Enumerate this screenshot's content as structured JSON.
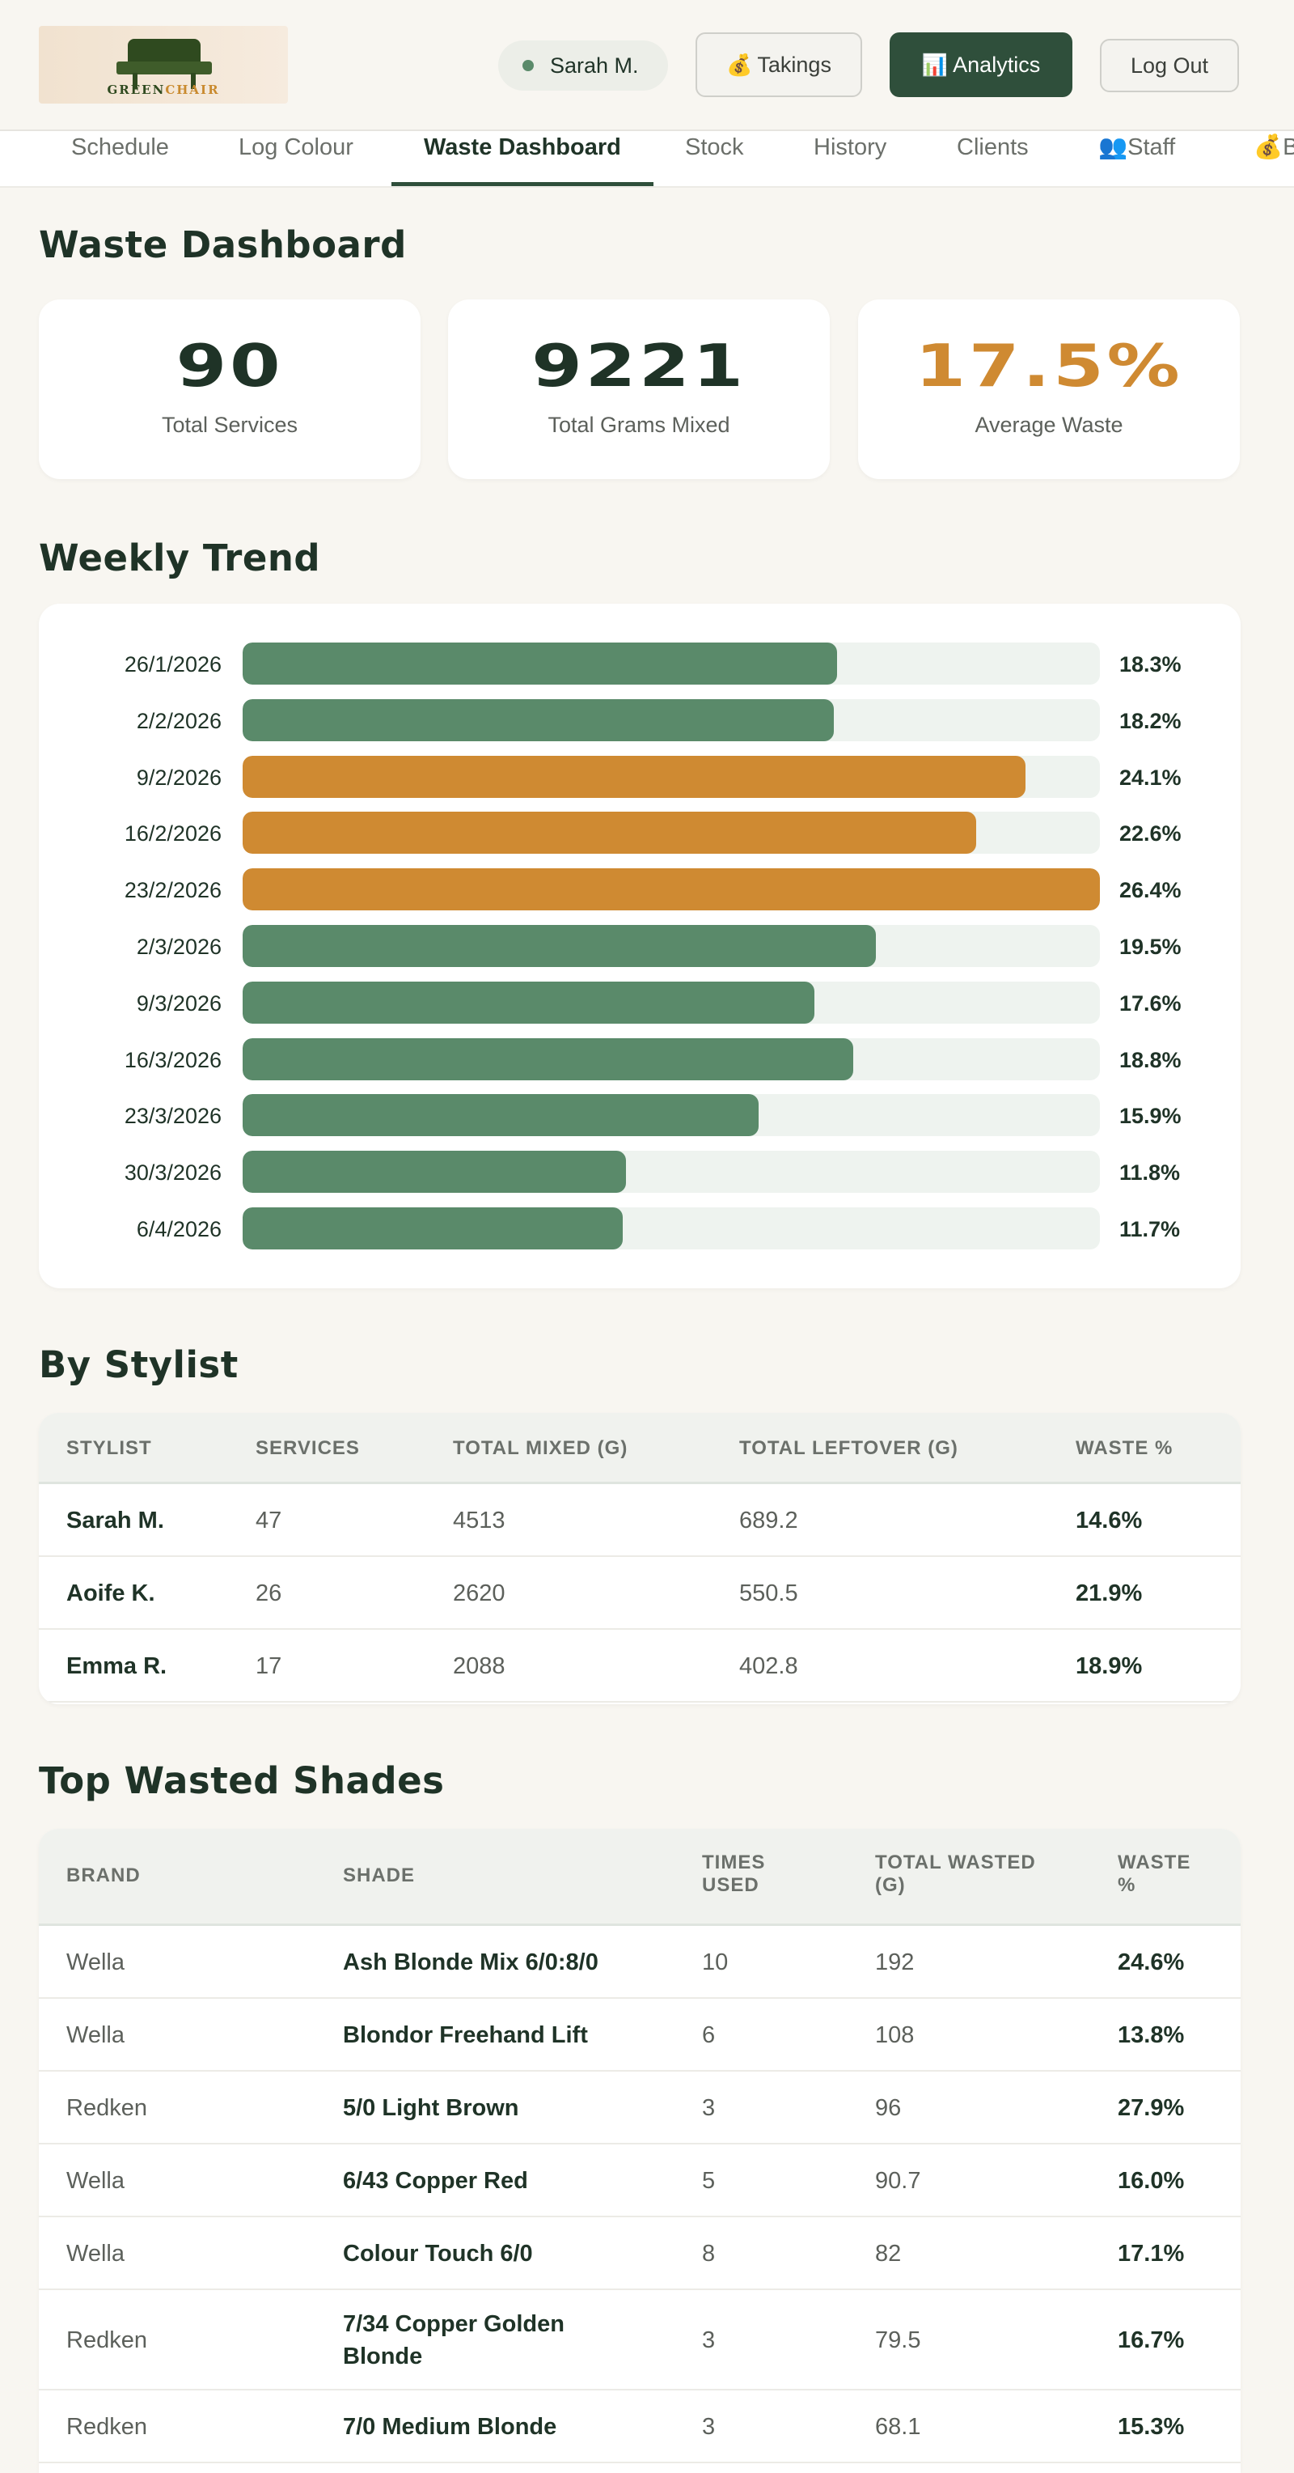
{
  "header": {
    "logo_text_main": "GREEN",
    "logo_text_accent": "CHAIR",
    "user_name": "Sarah M.",
    "takings_icon": "money-bag-icon",
    "takings_label": "Takings",
    "analytics_icon": "bar-chart-icon",
    "analytics_label": "Analytics",
    "logout_label": "Log Out"
  },
  "tabs": [
    {
      "label": "Schedule"
    },
    {
      "label": "Log Colour"
    },
    {
      "label": "Waste Dashboard",
      "active": true
    },
    {
      "label": "Stock"
    },
    {
      "label": "History"
    },
    {
      "label": "Clients"
    },
    {
      "label": "Staff",
      "icon": "people-icon"
    },
    {
      "label": "B",
      "icon": "money-bag-icon"
    }
  ],
  "page_title": "Waste Dashboard",
  "stats": [
    {
      "value": "90",
      "label": "Total Services"
    },
    {
      "value": "9221",
      "label": "Total Grams Mixed"
    },
    {
      "value": "17.5%",
      "label": "Average Waste"
    }
  ],
  "weekly_trend": {
    "title": "Weekly Trend",
    "colors": {
      "normal": "#5a8a6a",
      "high": "#cf8a32"
    },
    "scale_max": 26.4
  },
  "chart_data": {
    "type": "bar",
    "orientation": "horizontal",
    "categories": [
      "26/1/2026",
      "2/2/2026",
      "9/2/2026",
      "16/2/2026",
      "23/2/2026",
      "2/3/2026",
      "9/3/2026",
      "16/3/2026",
      "23/3/2026",
      "30/3/2026",
      "6/4/2026"
    ],
    "values": [
      18.3,
      18.2,
      24.1,
      22.6,
      26.4,
      19.5,
      17.6,
      18.8,
      15.9,
      11.8,
      11.7
    ],
    "value_labels": [
      "18.3%",
      "18.2%",
      "24.1%",
      "22.6%",
      "26.4%",
      "19.5%",
      "17.6%",
      "18.8%",
      "15.9%",
      "11.8%",
      "11.7%"
    ],
    "highlight": [
      false,
      false,
      true,
      true,
      true,
      false,
      false,
      false,
      false,
      false,
      false
    ],
    "xlim": [
      0,
      26.4
    ]
  },
  "by_stylist": {
    "title": "By Stylist",
    "columns": [
      "STYLIST",
      "SERVICES",
      "TOTAL MIXED (G)",
      "TOTAL LEFTOVER (G)",
      "WASTE %"
    ],
    "rows": [
      [
        "Sarah M.",
        "47",
        "4513",
        "689.2",
        "14.6%"
      ],
      [
        "Aoife K.",
        "26",
        "2620",
        "550.5",
        "21.9%"
      ],
      [
        "Emma R.",
        "17",
        "2088",
        "402.8",
        "18.9%"
      ]
    ]
  },
  "top_shades": {
    "title": "Top Wasted Shades",
    "columns": [
      "BRAND",
      "SHADE",
      "TIMES USED",
      "TOTAL WASTED (G)",
      "WASTE %"
    ],
    "rows": [
      [
        "Wella",
        "Ash Blonde Mix 6/0:8/0",
        "10",
        "192",
        "24.6%"
      ],
      [
        "Wella",
        "Blondor Freehand Lift",
        "6",
        "108",
        "13.8%"
      ],
      [
        "Redken",
        "5/0 Light Brown",
        "3",
        "96",
        "27.9%"
      ],
      [
        "Wella",
        "6/43 Copper Red",
        "5",
        "90.7",
        "16.0%"
      ],
      [
        "Wella",
        "Colour Touch 6/0",
        "8",
        "82",
        "17.1%"
      ],
      [
        "Redken",
        "7/34 Copper Golden Blonde",
        "3",
        "79.5",
        "16.7%"
      ],
      [
        "Redken",
        "7/0 Medium Blonde",
        "3",
        "68.1",
        "15.3%"
      ]
    ]
  }
}
